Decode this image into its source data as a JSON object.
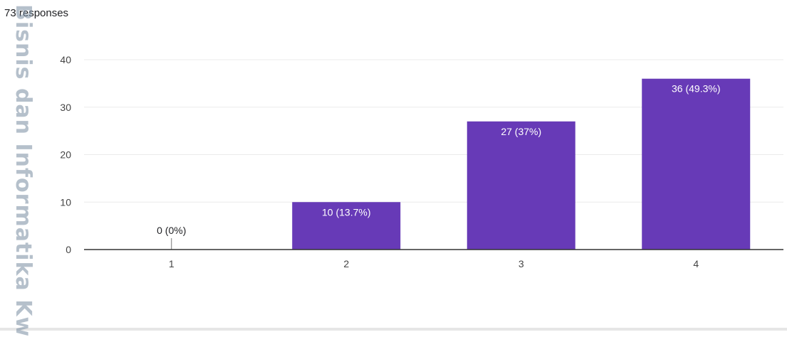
{
  "responses_label": "73 responses",
  "watermark_text": "Bisnis dan Informatika Kw",
  "colors": {
    "bar": "#673ab7",
    "grid": "#ebebeb",
    "axis": "#333333",
    "tick_text": "#444444",
    "bar_label_inside": "#ffffff",
    "bar_label_outside": "#202124"
  },
  "chart_data": {
    "type": "bar",
    "title": "",
    "xlabel": "",
    "ylabel": "",
    "categories": [
      "1",
      "2",
      "3",
      "4"
    ],
    "values": [
      0,
      10,
      27,
      36
    ],
    "data_labels": [
      "0 (0%)",
      "10 (13.7%)",
      "27 (37%)",
      "36 (49.3%)"
    ],
    "ylim": [
      0,
      40
    ],
    "yticks": [
      0,
      10,
      20,
      30,
      40
    ],
    "grid": true,
    "legend": "none"
  }
}
